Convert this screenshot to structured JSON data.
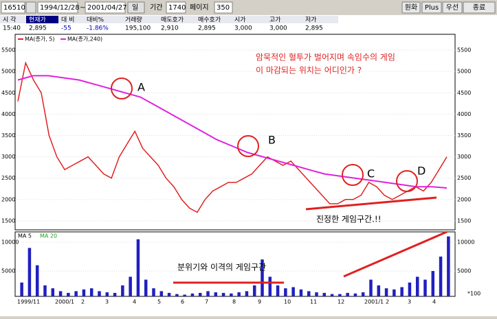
{
  "toolbar": {
    "code": "16510",
    "start_date": "1994/12/28",
    "tilde": "~",
    "end_date": "2001/04/27",
    "period_unit": "일",
    "period_label": "기간",
    "period": "1740",
    "page_label": "페이지",
    "page": "350",
    "buttons": [
      "원화",
      "Plus",
      "우선",
      "종료"
    ]
  },
  "quote": {
    "headers": [
      "시 각",
      "현재가",
      "대 비",
      "대비%",
      "거래량",
      "매도호가",
      "매수호가",
      "시가",
      "고가",
      "저가"
    ],
    "values": [
      "15:40",
      "2,895",
      "-55",
      "-1.86%",
      "195,100",
      "2,910",
      "2,895",
      "3,000",
      "3,000",
      "2,895"
    ]
  },
  "price_chart": {
    "type": "line",
    "ylim": [
      1290,
      5870
    ],
    "yticks": [
      1500,
      2000,
      2500,
      3000,
      3500,
      4000,
      4500,
      5000,
      5500
    ],
    "series": [
      {
        "name": "MA(종가, 5)",
        "color": "#e02020",
        "values": [
          4300,
          5200,
          4800,
          4500,
          3500,
          3000,
          2700,
          2800,
          2900,
          3000,
          2800,
          2600,
          2500,
          3000,
          3300,
          3600,
          3200,
          3000,
          2800,
          2500,
          2300,
          2000,
          1800,
          1700,
          2000,
          2200,
          2300,
          2400,
          2400,
          2500,
          2600,
          2800,
          3000,
          2900,
          2800,
          2900,
          2700,
          2500,
          2300,
          2100,
          1900,
          1900,
          2000,
          2000,
          2100,
          2400,
          2300,
          2100,
          2000,
          2100,
          2200,
          2300,
          2200,
          2400,
          2700,
          3000
        ]
      },
      {
        "name": "MA(종가,240)",
        "color": "#e020e0",
        "values": [
          4800,
          4900,
          4900,
          4850,
          4800,
          4700,
          4600,
          4500,
          4400,
          4200,
          4000,
          3800,
          3600,
          3400,
          3250,
          3100,
          3000,
          2900,
          2800,
          2700,
          2600,
          2550,
          2500,
          2450,
          2400,
          2350,
          2300,
          2300,
          2270
        ]
      }
    ],
    "annotations": {
      "question": [
        "암묵적인 혈투가 벌어지며 속임수의 게임",
        "이 마감되는 위치는 어디인가 ?"
      ],
      "points": [
        "A",
        "B",
        "C",
        "D"
      ],
      "zone": "진정한 게임구간.!!"
    }
  },
  "volume_chart": {
    "type": "bar",
    "color": "#2020c0",
    "legend": [
      "MA 5",
      "MA 20"
    ],
    "ylim": [
      600,
      11550
    ],
    "yticks": [
      5000,
      10000
    ],
    "unit_label": "*100",
    "values": [
      3000,
      9000,
      6000,
      2500,
      2000,
      1500,
      1200,
      1500,
      1800,
      2000,
      1500,
      1300,
      1200,
      2500,
      4000,
      10500,
      3500,
      2000,
      1500,
      1200,
      1000,
      900,
      1100,
      1200,
      1500,
      1300,
      1200,
      1100,
      1300,
      1500,
      2500,
      7000,
      4000,
      2500,
      2000,
      2200,
      1800,
      1500,
      1300,
      1200,
      1000,
      1000,
      1200,
      1100,
      1300,
      3500,
      2500,
      2000,
      1800,
      2200,
      3000,
      4000,
      3500,
      5000,
      7500,
      11000
    ],
    "annotation": "분위기와 이격의 게임구간"
  },
  "x_labels": [
    "1999/11",
    "2000/1",
    "2",
    "3",
    "4",
    "5",
    "6",
    "7",
    "8",
    "9",
    "10",
    "11",
    "12",
    "2001/1",
    "2",
    "3",
    "4"
  ]
}
